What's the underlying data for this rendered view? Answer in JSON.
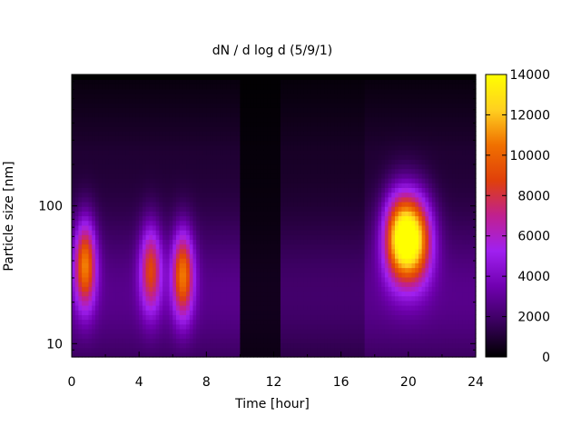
{
  "chart_data": {
    "type": "heatmap",
    "title": "dN / d log d (5/9/1)",
    "xlabel": "Time [hour]",
    "ylabel": "Particle size [nm]",
    "xlim": [
      0,
      24
    ],
    "ylim": [
      8,
      900
    ],
    "y_scale": "log",
    "x_ticks": [
      0,
      4,
      8,
      12,
      16,
      20,
      24
    ],
    "y_ticks": [
      10,
      100
    ],
    "colorbar": {
      "min": 0,
      "max": 14000,
      "ticks": [
        0,
        2000,
        4000,
        6000,
        8000,
        10000,
        12000,
        14000
      ],
      "colormap": "gnuplot-pm3d-default",
      "colors": [
        "#000000",
        "#3a005e",
        "#7000b0",
        "#a020f0",
        "#c02090",
        "#e0400a",
        "#f07000",
        "#ffd020",
        "#ffff00"
      ]
    },
    "background_level": 2000,
    "gap_start_hour": 10,
    "gap_end_hour": 12.5,
    "gap_level": 400,
    "features": [
      {
        "time": 0.8,
        "size": 38,
        "peak": 8500
      },
      {
        "time": 4.7,
        "size": 35,
        "peak": 6500
      },
      {
        "time": 6.6,
        "size": 32,
        "peak": 8200
      },
      {
        "time": 19.5,
        "size": 60,
        "peak": 10500
      },
      {
        "time": 20.5,
        "size": 58,
        "peak": 8500
      }
    ],
    "grid": false,
    "legend": "none"
  }
}
